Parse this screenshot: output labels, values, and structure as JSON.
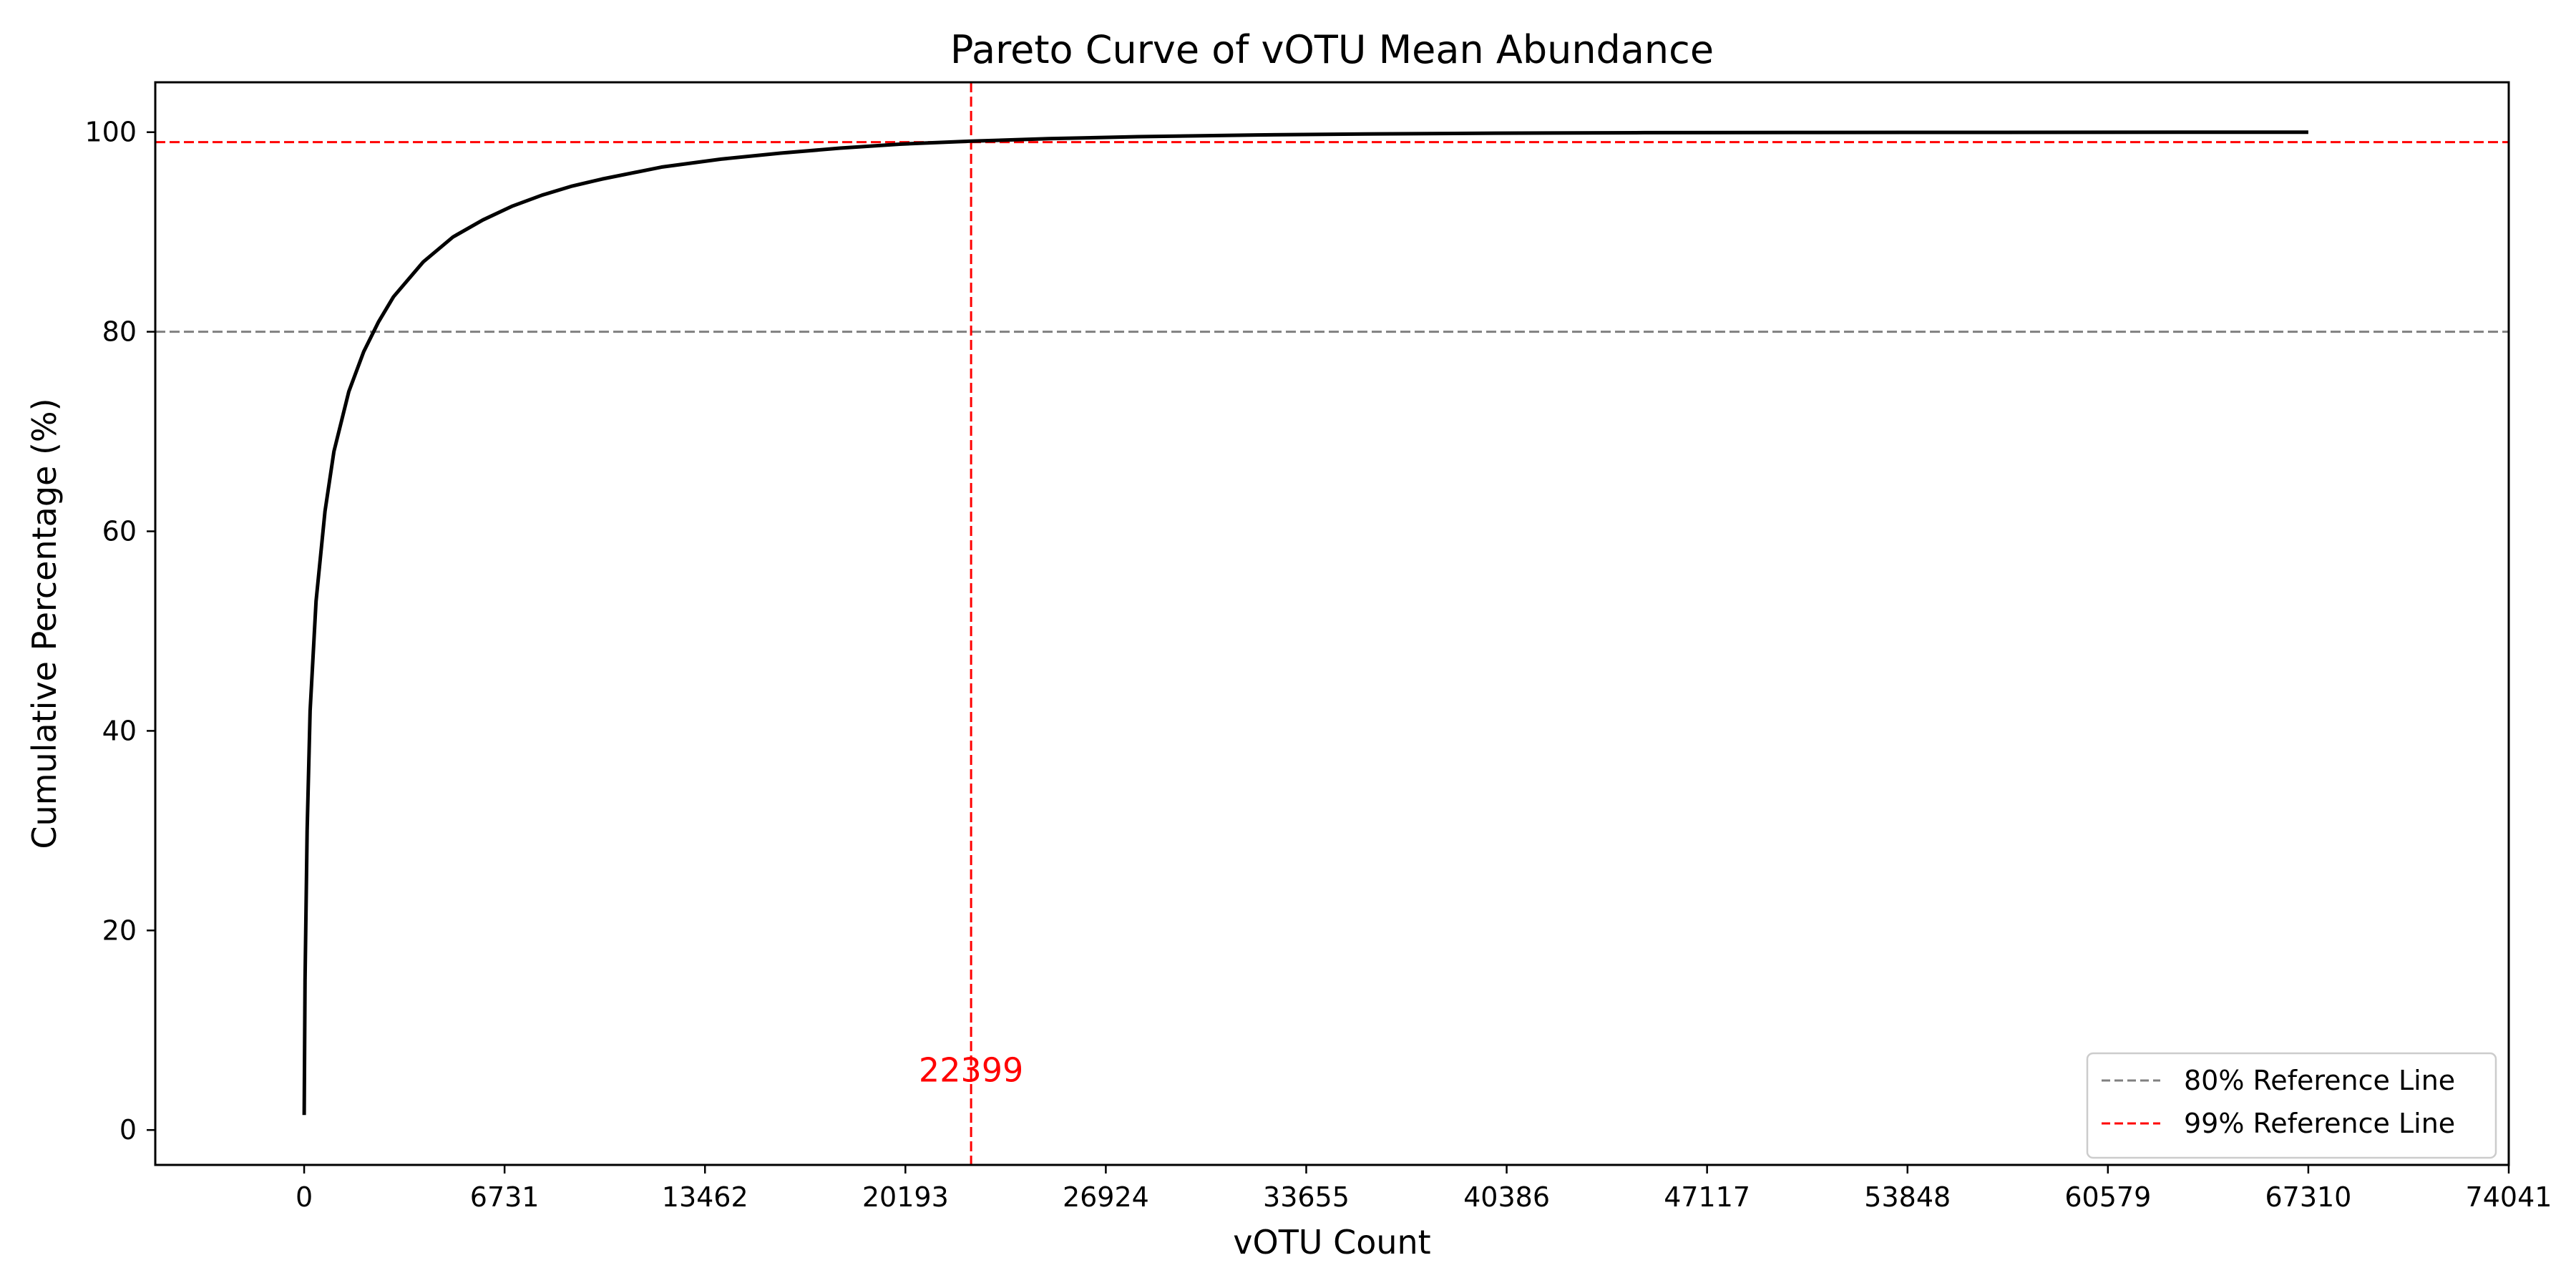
{
  "chart_data": {
    "type": "line",
    "title": "Pareto Curve of vOTU Mean Abundance",
    "xlabel": "vOTU Count",
    "ylabel": "Cumulative Percentage (%)",
    "xlim": [
      -5000,
      74041
    ],
    "ylim": [
      -3.5,
      105
    ],
    "x_ticks": [
      0,
      6731,
      13462,
      20193,
      26924,
      33655,
      40386,
      47117,
      53848,
      60579,
      67310,
      74041
    ],
    "y_ticks": [
      0,
      20,
      40,
      60,
      80,
      100
    ],
    "grid": false,
    "legend_position": "lower-right",
    "series": [
      {
        "color": "#000000",
        "x": [
          1,
          30,
          100,
          200,
          400,
          700,
          1000,
          1500,
          2000,
          2500,
          3000,
          4000,
          5000,
          6000,
          7000,
          8000,
          9000,
          10000,
          12000,
          14000,
          16000,
          18000,
          20000,
          22399,
          25000,
          28000,
          32000,
          36000,
          40000,
          45000,
          50000,
          55000,
          60000,
          67310
        ],
        "y": [
          1.5,
          15,
          30,
          42,
          53,
          62,
          68,
          74,
          78,
          81,
          83.5,
          87,
          89.5,
          91.2,
          92.6,
          93.7,
          94.6,
          95.3,
          96.5,
          97.3,
          97.9,
          98.4,
          98.8,
          99.1,
          99.35,
          99.55,
          99.72,
          99.83,
          99.9,
          99.95,
          99.97,
          99.98,
          99.99,
          100
        ]
      }
    ],
    "reference_lines": [
      {
        "orientation": "horizontal",
        "value": 80,
        "color": "#808080",
        "style": "dashed",
        "legend": "80% Reference Line"
      },
      {
        "orientation": "horizontal",
        "value": 99,
        "color": "#ff0000",
        "style": "dashed",
        "legend": "99% Reference Line"
      },
      {
        "orientation": "vertical",
        "value": 22399,
        "color": "#ff0000",
        "style": "dashed"
      }
    ],
    "annotations": [
      {
        "text": "22399",
        "x": 22399,
        "y": 6,
        "color": "#ff0000"
      }
    ]
  }
}
